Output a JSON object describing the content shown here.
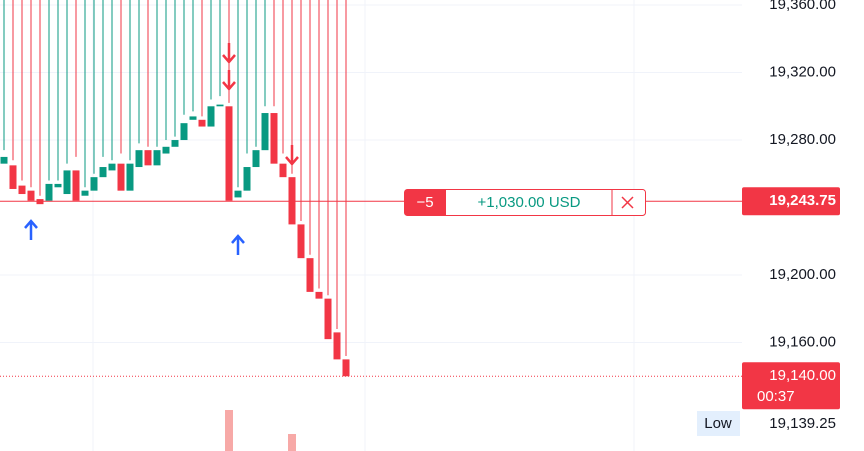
{
  "chart_data": {
    "type": "candlestick",
    "ylim": [
      19095.7,
      19363
    ],
    "yticks": [
      {
        "value": 19360,
        "label": "19,360.00"
      },
      {
        "value": 19320,
        "label": "19,320.00"
      },
      {
        "value": 19280,
        "label": "19,280.00"
      },
      {
        "value": 19200,
        "label": "19,200.00"
      },
      {
        "value": 19160,
        "label": "19,160.00"
      }
    ],
    "up_color": "#089981",
    "down_color": "#f23645",
    "open": [
      19266,
      19265,
      19253,
      19250,
      19245,
      19244,
      19252,
      19248,
      19262,
      19247,
      19250,
      19258,
      19262,
      19266,
      19250,
      19264,
      19274,
      19265,
      19272,
      19276,
      19280,
      19292,
      19292,
      19288,
      19300,
      19300,
      19246,
      19250,
      19264,
      19274,
      19296,
      19266,
      19258,
      19230,
      19210,
      19190,
      19186,
      19166,
      19150
    ],
    "high": [
      19274,
      19268,
      19256,
      19252,
      19247,
      19256,
      19256,
      19266,
      19270,
      19252,
      19260,
      19270,
      19268,
      19272,
      19268,
      19278,
      19276,
      19276,
      19280,
      19282,
      19295,
      19297,
      19294,
      19304,
      19306,
      19302,
      19252,
      19272,
      19276,
      19300,
      19300,
      19272,
      19260,
      19232,
      19212,
      19192,
      19188,
      19168,
      19152
    ],
    "low": {
      "name": "Low",
      "value": 19139.25,
      "label": "19,139.25"
    },
    "close": [
      19270,
      19251,
      19248,
      19244,
      19242,
      19254,
      19254,
      19262,
      19244,
      19250,
      19258,
      19264,
      19266,
      19250,
      19266,
      19274,
      19265,
      19274,
      19276,
      19280,
      19290,
      19294,
      19288,
      19300,
      19301,
      19244,
      19250,
      19264,
      19274,
      19296,
      19266,
      19258,
      19230,
      19210,
      19190,
      19186,
      19162,
      19150,
      19140
    ],
    "price_line": {
      "value": 19243.75,
      "label": "19,243.75"
    },
    "last_price": {
      "value": 19140,
      "label": "19,140.00",
      "countdown": "00:37"
    },
    "position": {
      "quantity": "−5",
      "pnl": "+1,030.00 USD"
    }
  }
}
